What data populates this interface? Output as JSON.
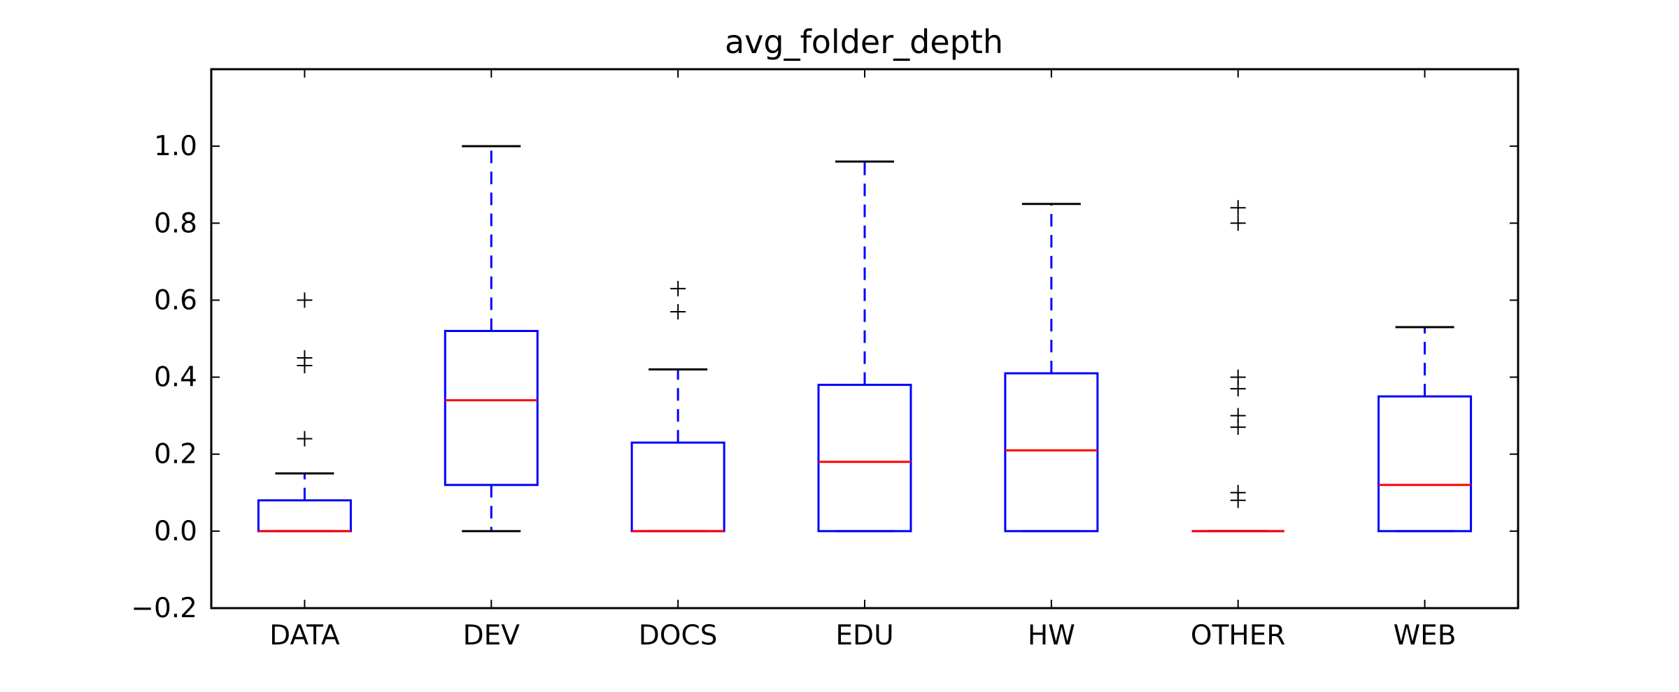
{
  "chart_data": {
    "type": "boxplot",
    "title": "avg_folder_depth",
    "xlabel": "",
    "ylabel": "",
    "ylim": [
      -0.2,
      1.2
    ],
    "yticks": [
      -0.2,
      0.0,
      0.2,
      0.4,
      0.6,
      0.8,
      1.0
    ],
    "ytick_labels": [
      "−0.2",
      "0.0",
      "0.2",
      "0.4",
      "0.6",
      "0.8",
      "1.0"
    ],
    "grid": false,
    "categories": [
      "DATA",
      "DEV",
      "DOCS",
      "EDU",
      "HW",
      "OTHER",
      "WEB"
    ],
    "boxes": [
      {
        "category": "DATA",
        "q1": 0.0,
        "median": 0.0,
        "q3": 0.08,
        "whisker_low": 0.0,
        "whisker_high": 0.15,
        "outliers": [
          0.24,
          0.43,
          0.45,
          0.6
        ]
      },
      {
        "category": "DEV",
        "q1": 0.12,
        "median": 0.34,
        "q3": 0.52,
        "whisker_low": 0.0,
        "whisker_high": 1.0,
        "outliers": []
      },
      {
        "category": "DOCS",
        "q1": 0.0,
        "median": 0.0,
        "q3": 0.23,
        "whisker_low": 0.0,
        "whisker_high": 0.42,
        "outliers": [
          0.57,
          0.63
        ]
      },
      {
        "category": "EDU",
        "q1": 0.0,
        "median": 0.18,
        "q3": 0.38,
        "whisker_low": 0.0,
        "whisker_high": 0.96,
        "outliers": []
      },
      {
        "category": "HW",
        "q1": 0.0,
        "median": 0.21,
        "q3": 0.41,
        "whisker_low": 0.0,
        "whisker_high": 0.85,
        "outliers": []
      },
      {
        "category": "OTHER",
        "q1": 0.0,
        "median": 0.0,
        "q3": 0.0,
        "whisker_low": 0.0,
        "whisker_high": 0.0,
        "outliers": [
          0.08,
          0.1,
          0.27,
          0.3,
          0.37,
          0.4,
          0.8,
          0.84
        ]
      },
      {
        "category": "WEB",
        "q1": 0.0,
        "median": 0.12,
        "q3": 0.35,
        "whisker_low": 0.0,
        "whisker_high": 0.53,
        "outliers": []
      }
    ],
    "colors": {
      "box": "#0000ff",
      "median": "#ff0000",
      "whisker": "#0000ff",
      "cap": "#000000",
      "outlier": "#000000",
      "axes": "#000000"
    }
  }
}
